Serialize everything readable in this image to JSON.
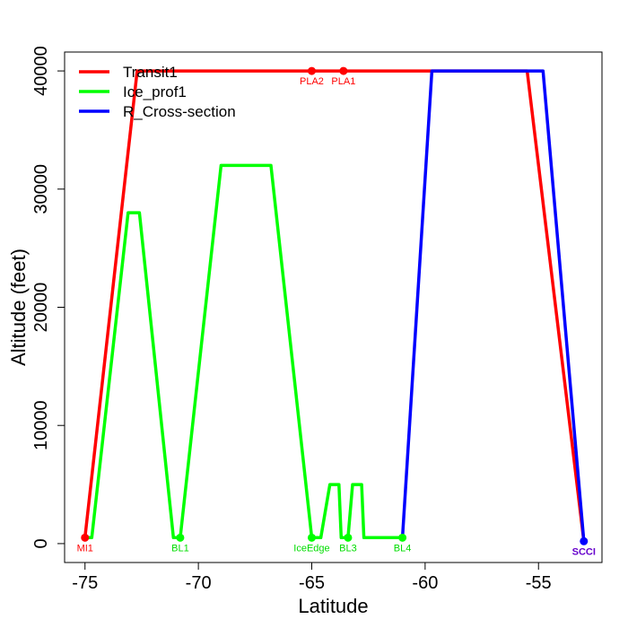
{
  "chart_data": {
    "type": "line",
    "title": "",
    "xlabel": "Latitude",
    "ylabel": "Altitude (feet)",
    "xlim": [
      -75.9,
      -52.2
    ],
    "ylim": [
      -1600,
      41600
    ],
    "x_ticks": [
      -75,
      -70,
      -65,
      -60,
      -55
    ],
    "x_tick_labels": [
      "-75",
      "-70",
      "-65",
      "-60",
      "-55"
    ],
    "y_ticks": [
      0,
      10000,
      20000,
      30000,
      40000
    ],
    "y_tick_labels": [
      "0",
      "10000",
      "20000",
      "30000",
      "40000"
    ],
    "legend_position": "top-left",
    "series": [
      {
        "name": "Transit1",
        "color": "#ff0000",
        "x": [
          -75.0,
          -72.7,
          -55.5,
          -53.0
        ],
        "y": [
          500,
          40000,
          40000,
          200
        ]
      },
      {
        "name": "Ice_prof1",
        "color": "#00ff00",
        "x": [
          -75.0,
          -74.7,
          -73.1,
          -72.6,
          -71.1,
          -70.8,
          -69.0,
          -66.8,
          -65.0,
          -64.6,
          -64.2,
          -63.8,
          -63.7,
          -63.4,
          -63.2,
          -62.8,
          -62.7,
          -61.0
        ],
        "y": [
          500,
          500,
          28000,
          28000,
          500,
          500,
          32000,
          32000,
          500,
          500,
          5000,
          5000,
          500,
          500,
          5000,
          5000,
          500,
          500
        ]
      },
      {
        "name": "R_Cross-section",
        "color": "#0000ff",
        "x": [
          -61.0,
          -59.7,
          -54.8,
          -53.0
        ],
        "y": [
          500,
          40000,
          40000,
          200
        ]
      }
    ],
    "points": [
      {
        "label": "MI1",
        "x": -75.0,
        "y": 500,
        "color": "#ff0000",
        "label_color": "#ff0000",
        "bold": false
      },
      {
        "label": "PLA2",
        "x": -65.0,
        "y": 40000,
        "color": "#ff0000",
        "label_color": "#ff0000",
        "bold": false
      },
      {
        "label": "PLA1",
        "x": -63.6,
        "y": 40000,
        "color": "#ff0000",
        "label_color": "#ff0000",
        "bold": false
      },
      {
        "label": "BL1",
        "x": -70.8,
        "y": 500,
        "color": "#00ff00",
        "label_color": "#00dd00",
        "bold": false
      },
      {
        "label": "IceEdge",
        "x": -65.0,
        "y": 500,
        "color": "#00ff00",
        "label_color": "#00dd00",
        "bold": false
      },
      {
        "label": "BL3",
        "x": -63.4,
        "y": 500,
        "color": "#00ff00",
        "label_color": "#00dd00",
        "bold": false
      },
      {
        "label": "BL4",
        "x": -61.0,
        "y": 500,
        "color": "#00ff00",
        "label_color": "#00dd00",
        "bold": false
      },
      {
        "label": "SCCI",
        "x": -53.0,
        "y": 200,
        "color": "#0000ff",
        "label_color": "#6600cc",
        "bold": true
      }
    ]
  }
}
